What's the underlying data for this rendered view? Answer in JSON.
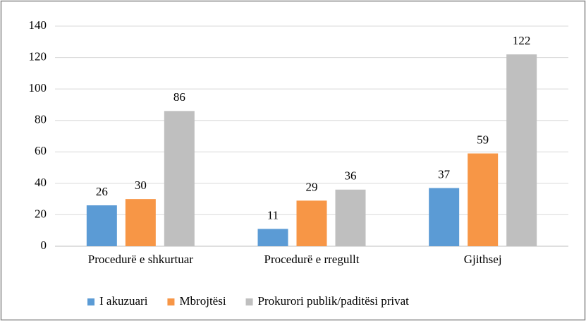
{
  "chart_data": {
    "type": "bar",
    "categories": [
      "Procedurë e shkurtuar",
      "Procedurë e rregullt",
      "Gjithsej"
    ],
    "series": [
      {
        "name": "I akuzuari",
        "color": "#5b9bd5",
        "values": [
          26,
          11,
          37
        ]
      },
      {
        "name": "Mbrojtësi",
        "color": "#f79646",
        "values": [
          30,
          29,
          59
        ]
      },
      {
        "name": "Prokurori publik/paditësi privat",
        "color": "#bfbfbf",
        "values": [
          86,
          36,
          122
        ]
      }
    ],
    "ylim": [
      0,
      140
    ],
    "yticks": [
      0,
      20,
      40,
      60,
      80,
      100,
      120,
      140
    ],
    "grid": true,
    "legend": "bottom"
  }
}
